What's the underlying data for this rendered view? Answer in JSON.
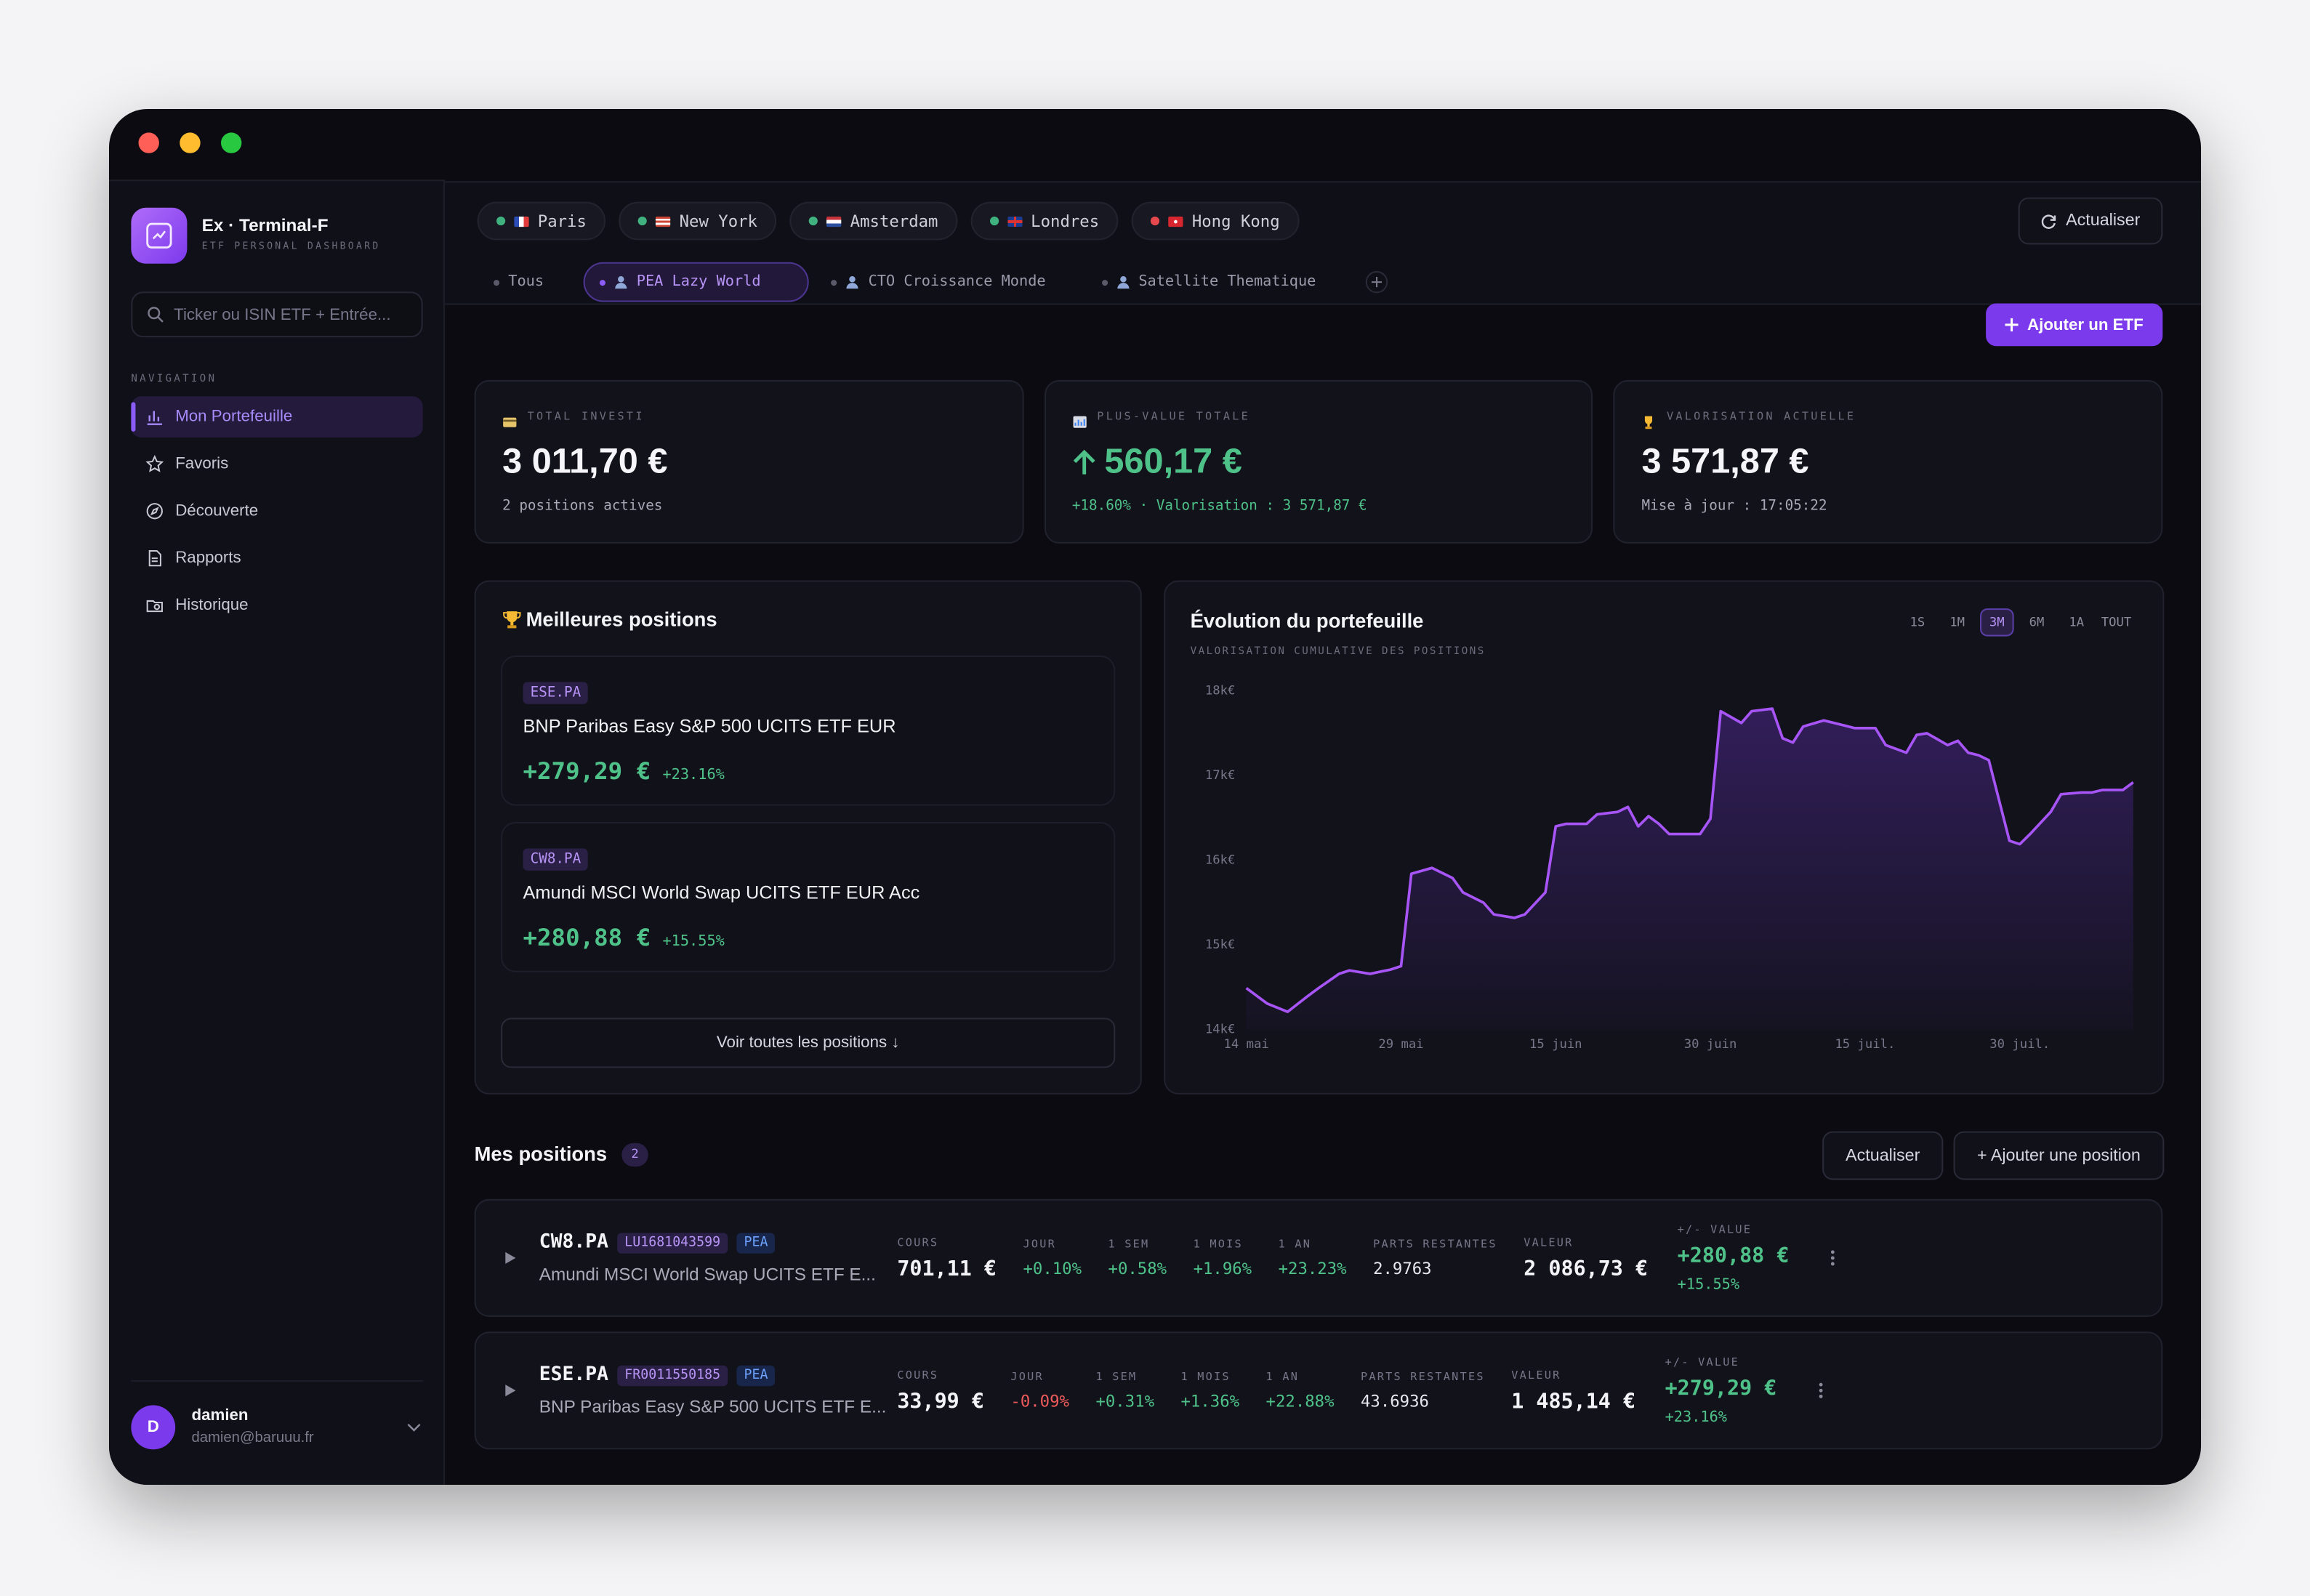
{
  "sidebar": {
    "app_name": "Ex · Terminal-F",
    "app_tagline": "ETF PERSONAL DASHBOARD",
    "search_placeholder": "Ticker ou ISIN ETF + Entrée...",
    "nav_heading": "NAVIGATION",
    "nav": [
      {
        "label": "Mon Portefeuille",
        "active": true
      },
      {
        "label": "Favoris"
      },
      {
        "label": "Découverte"
      },
      {
        "label": "Rapports"
      },
      {
        "label": "Historique"
      }
    ],
    "user": {
      "initial": "D",
      "name": "damien",
      "email": "damien@baruuu.fr"
    }
  },
  "markets": [
    {
      "name": "Paris",
      "status_color": "#3fb27f"
    },
    {
      "name": "New York",
      "status_color": "#3fb27f"
    },
    {
      "name": "Amsterdam",
      "status_color": "#3fb27f"
    },
    {
      "name": "Londres",
      "status_color": "#3fb27f"
    },
    {
      "name": "Hong Kong",
      "status_color": "#e5484d"
    }
  ],
  "toolbar": {
    "refresh": "Actualiser",
    "add_etf": "Ajouter un ETF"
  },
  "portfolios": [
    {
      "name": "Tous"
    },
    {
      "name": "PEA Lazy World",
      "active": true
    },
    {
      "name": "CTO Croissance Monde"
    },
    {
      "name": "Satellite Thematique"
    }
  ],
  "summary": [
    {
      "label": "TOTAL INVESTI",
      "value": "3 011,70 €",
      "sub": "2 positions actives"
    },
    {
      "label": "PLUS-VALUE TOTALE",
      "value": "560,17 €",
      "sub": "+18.60% · Valorisation : 3 571,87 €"
    },
    {
      "label": "VALORISATION ACTUELLE",
      "value": "3 571,87 €",
      "sub": "Mise à jour : 17:05:22"
    }
  ],
  "top_positions": {
    "title": "Meilleures positions",
    "items": [
      {
        "ticker": "ESE.PA",
        "name": "BNP Paribas Easy S&P 500 UCITS ETF EUR",
        "gain": "+279,29 €",
        "pct": "+23.16%"
      },
      {
        "ticker": "CW8.PA",
        "name": "Amundi MSCI World Swap UCITS ETF EUR Acc",
        "gain": "+280,88 €",
        "pct": "+15.55%"
      }
    ],
    "link": "Voir toutes les positions ↓"
  },
  "chart_data": {
    "type": "line",
    "title": "Évolution du portefeuille",
    "subtitle": "VALORISATION CUMULATIVE DES POSITIONS",
    "ranges": [
      "1S",
      "1M",
      "3M",
      "6M",
      "1A",
      "TOUT"
    ],
    "active_range": "3M",
    "color": "#a855f7",
    "grid": false,
    "x": [
      0,
      2,
      4,
      6,
      7,
      9,
      10,
      12,
      14,
      15,
      16,
      18,
      20,
      21,
      23,
      24,
      26,
      27,
      29,
      30,
      31,
      33,
      34,
      36,
      37,
      38,
      39,
      40,
      41,
      44,
      45,
      46,
      48,
      49,
      51,
      52,
      53,
      54,
      56,
      57,
      59,
      61,
      62,
      64,
      65,
      66,
      68,
      69,
      70,
      71,
      72,
      74,
      75,
      76,
      78,
      79,
      81,
      82,
      83,
      85,
      86
    ],
    "values": [
      14490,
      14310,
      14210,
      14400,
      14490,
      14660,
      14700,
      14660,
      14710,
      14750,
      15840,
      15910,
      15790,
      15620,
      15500,
      15360,
      15320,
      15360,
      15620,
      16400,
      16430,
      16430,
      16540,
      16570,
      16630,
      16400,
      16520,
      16430,
      16310,
      16310,
      16490,
      17760,
      17620,
      17760,
      17790,
      17440,
      17390,
      17580,
      17650,
      17620,
      17560,
      17560,
      17360,
      17270,
      17480,
      17500,
      17360,
      17410,
      17270,
      17240,
      17180,
      16230,
      16190,
      16310,
      16570,
      16780,
      16800,
      16800,
      16830,
      16830,
      16920
    ],
    "xlim": [
      0,
      86
    ],
    "xticks": [
      {
        "value": 0,
        "label": "14 mai"
      },
      {
        "value": 15,
        "label": "29 mai"
      },
      {
        "value": 30,
        "label": "15 juin"
      },
      {
        "value": 45,
        "label": "30 juin"
      },
      {
        "value": 60,
        "label": "15 juil."
      },
      {
        "value": 75,
        "label": "30 juil."
      }
    ],
    "ylim": [
      14000,
      18000
    ],
    "yticks": [
      {
        "value": 18000,
        "label": "18k€"
      },
      {
        "value": 17000,
        "label": "17k€"
      },
      {
        "value": 16000,
        "label": "16k€"
      },
      {
        "value": 15000,
        "label": "15k€"
      },
      {
        "value": 14000,
        "label": "14k€"
      }
    ]
  },
  "positions": {
    "title": "Mes positions",
    "count": 2,
    "refresh": "Actualiser",
    "add": "+ Ajouter une position",
    "rows": [
      {
        "ticker": "CW8.PA",
        "isin": "LU1681043599",
        "account": "PEA",
        "name": "Amundi MSCI World Swap UCITS ETF E...",
        "metrics": [
          {
            "label": "COURS",
            "value": "701,11 €"
          },
          {
            "label": "JOUR",
            "value": "+0.10%"
          },
          {
            "label": "1 SEM",
            "value": "+0.58%"
          },
          {
            "label": "1 MOIS",
            "value": "+1.96%"
          },
          {
            "label": "1 AN",
            "value": "+23.23%"
          },
          {
            "label": "PARTS RESTANTES",
            "value": "2.9763"
          },
          {
            "label": "VALEUR",
            "value": "2 086,73 €"
          }
        ],
        "pnl": {
          "label": "+/- VALUE",
          "value": "+280,88 €",
          "pct": "+15.55%"
        }
      },
      {
        "ticker": "ESE.PA",
        "isin": "FR0011550185",
        "account": "PEA",
        "name": "BNP Paribas Easy S&P 500 UCITS ETF E...",
        "metrics": [
          {
            "label": "COURS",
            "value": "33,99 €"
          },
          {
            "label": "JOUR",
            "value": "-0.09%"
          },
          {
            "label": "1 SEM",
            "value": "+0.31%"
          },
          {
            "label": "1 MOIS",
            "value": "+1.36%"
          },
          {
            "label": "1 AN",
            "value": "+22.88%"
          },
          {
            "label": "PARTS RESTANTES",
            "value": "43.6936"
          },
          {
            "label": "VALEUR",
            "value": "1 485,14 €"
          }
        ],
        "pnl": {
          "label": "+/- VALUE",
          "value": "+279,29 €",
          "pct": "+23.16%"
        }
      }
    ]
  }
}
